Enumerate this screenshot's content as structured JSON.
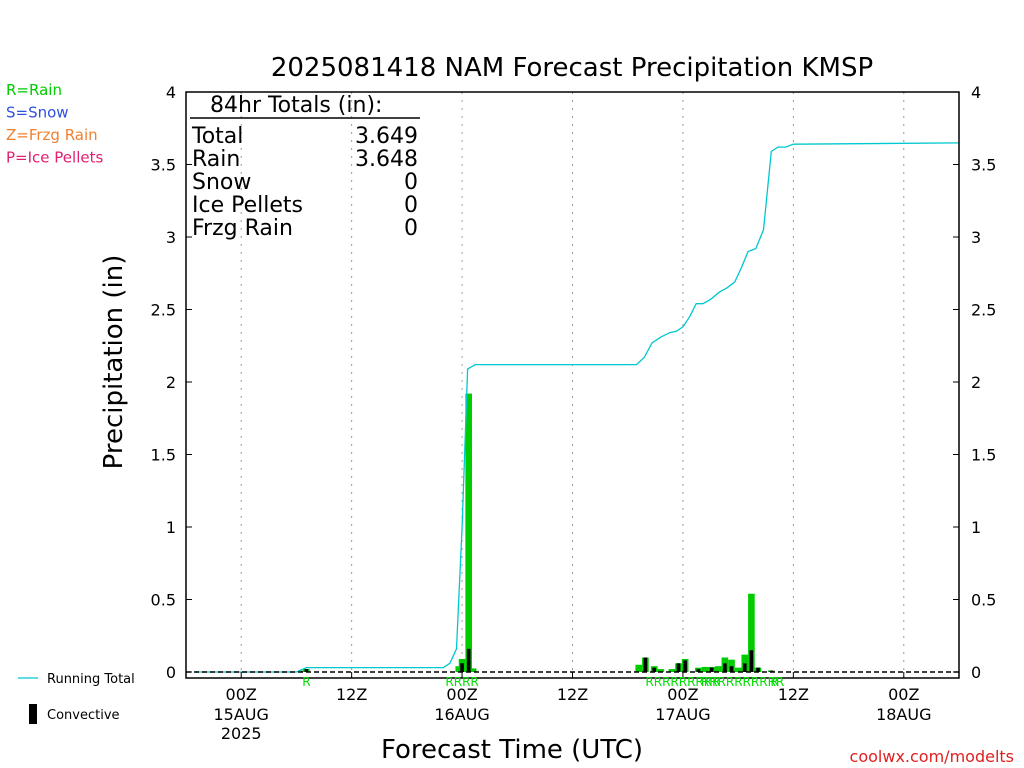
{
  "chart_data": {
    "type": "bar",
    "title": "2025081418 NAM Forecast Precipitation KMSP",
    "xlabel": "Forecast Time (UTC)",
    "ylabel": "Precipitation (in)",
    "ylim": [
      0,
      4
    ],
    "yticks": [
      "0",
      "0.5",
      "1",
      "1.5",
      "2",
      "2.5",
      "3",
      "3.5",
      "4"
    ],
    "xlim_hours": [
      -5,
      65
    ],
    "xticks": [
      {
        "h": 0,
        "label": "00Z",
        "day": "15AUG",
        "year": "2025"
      },
      {
        "h": 10,
        "label": "12Z",
        "day": "",
        "year": ""
      },
      {
        "h": 20,
        "label": "00Z",
        "day": "16AUG",
        "year": ""
      },
      {
        "h": 30,
        "label": "12Z",
        "day": "",
        "year": ""
      },
      {
        "h": 40,
        "label": "00Z",
        "day": "17AUG",
        "year": ""
      },
      {
        "h": 50,
        "label": "12Z",
        "day": "",
        "year": ""
      },
      {
        "h": 60,
        "label": "00Z",
        "day": "18AUG",
        "year": ""
      }
    ],
    "series": [
      {
        "name": "Total",
        "color": "#00cc00",
        "points": [
          [
            5.7,
            0.01
          ],
          [
            5.9,
            0.02
          ],
          [
            19.7,
            0.04
          ],
          [
            20.0,
            0.09
          ],
          [
            20.6,
            1.92
          ],
          [
            21.0,
            0.025
          ],
          [
            36.0,
            0.05
          ],
          [
            36.6,
            0.1
          ],
          [
            37.4,
            0.04
          ],
          [
            38.0,
            0.02
          ],
          [
            39.0,
            0.02
          ],
          [
            39.6,
            0.06
          ],
          [
            40.2,
            0.09
          ],
          [
            41.4,
            0.03
          ],
          [
            42.0,
            0.035
          ],
          [
            42.6,
            0.035
          ],
          [
            43.2,
            0.04
          ],
          [
            43.8,
            0.1
          ],
          [
            44.4,
            0.085
          ],
          [
            45.0,
            0.03
          ],
          [
            45.6,
            0.12
          ],
          [
            46.2,
            0.54
          ],
          [
            46.8,
            0.03
          ],
          [
            48.0,
            0.01
          ]
        ]
      },
      {
        "name": "Convective",
        "color": "#000000",
        "points": [
          [
            5.9,
            0.02
          ],
          [
            20.0,
            0.06
          ],
          [
            20.6,
            0.16
          ],
          [
            36.6,
            0.1
          ],
          [
            37.4,
            0.03
          ],
          [
            39.6,
            0.06
          ],
          [
            40.2,
            0.08
          ],
          [
            41.4,
            0.02
          ],
          [
            42.6,
            0.03
          ],
          [
            43.8,
            0.06
          ],
          [
            44.4,
            0.04
          ],
          [
            45.6,
            0.06
          ],
          [
            46.2,
            0.15
          ],
          [
            46.8,
            0.03
          ],
          [
            48.0,
            0.01
          ]
        ]
      },
      {
        "name": "Running Total",
        "color": "#00c8d0",
        "type": "line",
        "points": [
          [
            -4.2,
            0.0
          ],
          [
            5.0,
            0.0
          ],
          [
            5.9,
            0.03
          ],
          [
            18.3,
            0.03
          ],
          [
            18.9,
            0.06
          ],
          [
            19.5,
            0.16
          ],
          [
            20.0,
            1.0
          ],
          [
            20.5,
            2.09
          ],
          [
            21.2,
            2.12
          ],
          [
            35.8,
            2.12
          ],
          [
            36.5,
            2.17
          ],
          [
            37.2,
            2.27
          ],
          [
            38.0,
            2.31
          ],
          [
            38.8,
            2.34
          ],
          [
            39.4,
            2.35
          ],
          [
            40.0,
            2.38
          ],
          [
            40.6,
            2.45
          ],
          [
            41.2,
            2.54
          ],
          [
            41.8,
            2.54
          ],
          [
            42.5,
            2.57
          ],
          [
            43.3,
            2.62
          ],
          [
            44.0,
            2.65
          ],
          [
            44.7,
            2.69
          ],
          [
            45.3,
            2.79
          ],
          [
            45.9,
            2.9
          ],
          [
            46.6,
            2.92
          ],
          [
            47.3,
            3.05
          ],
          [
            48.0,
            3.59
          ],
          [
            48.6,
            3.62
          ],
          [
            49.3,
            3.62
          ],
          [
            50.0,
            3.64
          ],
          [
            65.0,
            3.649
          ]
        ]
      }
    ],
    "precip_type_labels": [
      {
        "h": 5.9,
        "text": "R"
      },
      {
        "h": 20.0,
        "text": "RRRR"
      },
      {
        "h": 40.0,
        "text": "RRRRRRRRR"
      },
      {
        "h": 45.4,
        "text": "RRRRRRRRRR"
      },
      {
        "h": 48.3,
        "text": "R"
      }
    ],
    "legend_top": [
      {
        "text": "R=Rain",
        "color": "#00cc00"
      },
      {
        "text": "S=Snow",
        "color": "#3050e0"
      },
      {
        "text": "Z=Frzg Rain",
        "color": "#f08030"
      },
      {
        "text": "P=Ice Pellets",
        "color": "#e02070"
      }
    ],
    "legend_bottom": [
      {
        "text": "Running Total",
        "color": "#00c8d0",
        "kind": "line"
      },
      {
        "text": "Convective",
        "color": "#000000",
        "kind": "bar"
      }
    ],
    "totals_box": {
      "heading": "84hr Totals (in):",
      "rows": [
        {
          "label": "Total",
          "value": "3.649"
        },
        {
          "label": "Rain",
          "value": "3.648"
        },
        {
          "label": "Snow",
          "value": "0"
        },
        {
          "label": "Ice Pellets",
          "value": "0"
        },
        {
          "label": "Frzg Rain",
          "value": "0"
        }
      ]
    },
    "credit": "coolwx.com/modelts"
  }
}
